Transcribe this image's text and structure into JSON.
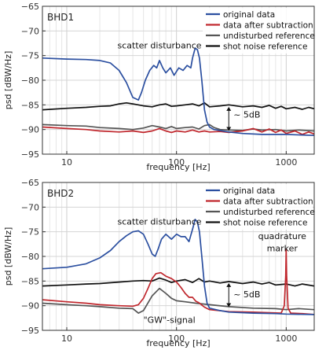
{
  "chart_data": [
    {
      "type": "line",
      "title": "BHD1",
      "xlabel": "frequency [Hz]",
      "ylabel": "psd [dBW/Hz]",
      "xscale": "log",
      "xlim": [
        6,
        1800
      ],
      "ylim": [
        -95,
        -65
      ],
      "xticks": [
        10,
        100,
        1000
      ],
      "xtick_labels": [
        "10",
        "100",
        "1000"
      ],
      "yticks": [
        -95,
        -90,
        -85,
        -80,
        -75,
        -70,
        -65
      ],
      "ytick_labels": [
        "−95",
        "−90",
        "−85",
        "−80",
        "−75",
        "−70",
        "−65"
      ],
      "grid": true,
      "legend_position": "top-right",
      "series": [
        {
          "name": "original data",
          "color": "#2b4fa0",
          "points": [
            [
              6,
              -75.5
            ],
            [
              10,
              -75.7
            ],
            [
              15,
              -75.8
            ],
            [
              20,
              -76
            ],
            [
              25,
              -76.5
            ],
            [
              30,
              -78
            ],
            [
              35,
              -80.5
            ],
            [
              40,
              -83.5
            ],
            [
              45,
              -84
            ],
            [
              48,
              -82.5
            ],
            [
              52,
              -80
            ],
            [
              57,
              -78
            ],
            [
              62,
              -77
            ],
            [
              66,
              -77.5
            ],
            [
              70,
              -76
            ],
            [
              75,
              -77.5
            ],
            [
              80,
              -78.5
            ],
            [
              88,
              -77.5
            ],
            [
              95,
              -79
            ],
            [
              105,
              -77.5
            ],
            [
              115,
              -78
            ],
            [
              125,
              -77
            ],
            [
              135,
              -77.5
            ],
            [
              140,
              -75.5
            ],
            [
              148,
              -73.5
            ],
            [
              155,
              -73.8
            ],
            [
              162,
              -75.5
            ],
            [
              170,
              -80
            ],
            [
              180,
              -86
            ],
            [
              190,
              -88.5
            ],
            [
              200,
              -89.5
            ],
            [
              220,
              -90
            ],
            [
              300,
              -90.5
            ],
            [
              400,
              -90.8
            ],
            [
              600,
              -91
            ],
            [
              1000,
              -91
            ],
            [
              1800,
              -91.2
            ]
          ]
        },
        {
          "name": "data after subtraction",
          "color": "#c0272d",
          "points": [
            [
              6,
              -89.5
            ],
            [
              10,
              -89.8
            ],
            [
              15,
              -90
            ],
            [
              20,
              -90.3
            ],
            [
              30,
              -90.5
            ],
            [
              40,
              -90.3
            ],
            [
              50,
              -90.6
            ],
            [
              60,
              -90.3
            ],
            [
              70,
              -89.8
            ],
            [
              80,
              -90.3
            ],
            [
              90,
              -90.6
            ],
            [
              100,
              -90.3
            ],
            [
              120,
              -90.5
            ],
            [
              140,
              -90.1
            ],
            [
              160,
              -90.5
            ],
            [
              180,
              -90.3
            ],
            [
              200,
              -90.5
            ],
            [
              250,
              -90.4
            ],
            [
              300,
              -90.6
            ],
            [
              400,
              -90.3
            ],
            [
              500,
              -89.8
            ],
            [
              600,
              -90.5
            ],
            [
              700,
              -89.9
            ],
            [
              800,
              -90.6
            ],
            [
              900,
              -90.1
            ],
            [
              1000,
              -90.8
            ],
            [
              1200,
              -90.3
            ],
            [
              1400,
              -91
            ],
            [
              1600,
              -90.5
            ],
            [
              1800,
              -90.9
            ]
          ]
        },
        {
          "name": "undisturbed reference",
          "color": "#555555",
          "points": [
            [
              6,
              -89
            ],
            [
              10,
              -89.2
            ],
            [
              15,
              -89.3
            ],
            [
              20,
              -89.6
            ],
            [
              30,
              -89.8
            ],
            [
              40,
              -90
            ],
            [
              50,
              -89.7
            ],
            [
              60,
              -89.2
            ],
            [
              70,
              -89.5
            ],
            [
              80,
              -89.8
            ],
            [
              90,
              -89.4
            ],
            [
              100,
              -89.8
            ],
            [
              120,
              -89.6
            ],
            [
              140,
              -89.5
            ],
            [
              160,
              -89.9
            ],
            [
              180,
              -89.2
            ],
            [
              200,
              -89
            ],
            [
              220,
              -89.6
            ],
            [
              250,
              -90
            ],
            [
              300,
              -90.1
            ],
            [
              400,
              -90.2
            ],
            [
              500,
              -89.9
            ],
            [
              600,
              -90.1
            ],
            [
              800,
              -90
            ],
            [
              1000,
              -90.3
            ],
            [
              1300,
              -90.1
            ],
            [
              1800,
              -90.3
            ]
          ]
        },
        {
          "name": "shot noise reference",
          "color": "#111111",
          "points": [
            [
              6,
              -86
            ],
            [
              10,
              -85.7
            ],
            [
              15,
              -85.5
            ],
            [
              20,
              -85.3
            ],
            [
              25,
              -85.2
            ],
            [
              30,
              -84.8
            ],
            [
              35,
              -84.6
            ],
            [
              40,
              -84.8
            ],
            [
              50,
              -85.2
            ],
            [
              60,
              -85.4
            ],
            [
              70,
              -85
            ],
            [
              80,
              -84.8
            ],
            [
              90,
              -85.3
            ],
            [
              100,
              -85.2
            ],
            [
              120,
              -85
            ],
            [
              140,
              -84.8
            ],
            [
              160,
              -85.2
            ],
            [
              180,
              -84.6
            ],
            [
              200,
              -85.4
            ],
            [
              250,
              -85.2
            ],
            [
              300,
              -85
            ],
            [
              400,
              -85.4
            ],
            [
              500,
              -85.2
            ],
            [
              600,
              -85.5
            ],
            [
              700,
              -85.1
            ],
            [
              800,
              -85.7
            ],
            [
              900,
              -85.3
            ],
            [
              1000,
              -85.8
            ],
            [
              1200,
              -85.5
            ],
            [
              1400,
              -85.9
            ],
            [
              1600,
              -85.5
            ],
            [
              1800,
              -85.8
            ]
          ]
        }
      ],
      "annotations": [
        {
          "text": "scatter disturbance",
          "x": 70,
          "y": -73.5
        },
        {
          "text": "~ 5dB",
          "x": 320,
          "y": -87.6
        }
      ]
    },
    {
      "type": "line",
      "title": "BHD2",
      "xlabel": "frequency [Hz]",
      "ylabel": "psd [dBW/Hz]",
      "xscale": "log",
      "xlim": [
        6,
        1800
      ],
      "ylim": [
        -95,
        -65
      ],
      "xticks": [
        10,
        100,
        1000
      ],
      "xtick_labels": [
        "10",
        "100",
        "1000"
      ],
      "yticks": [
        -95,
        -90,
        -85,
        -80,
        -75,
        -70,
        -65
      ],
      "ytick_labels": [
        "−95",
        "−90",
        "−85",
        "−80",
        "−75",
        "−70",
        "−65"
      ],
      "grid": true,
      "legend_position": "top-right",
      "series": [
        {
          "name": "original data",
          "color": "#2b4fa0",
          "points": [
            [
              6,
              -82.5
            ],
            [
              10,
              -82.2
            ],
            [
              15,
              -81.5
            ],
            [
              20,
              -80.3
            ],
            [
              25,
              -78.8
            ],
            [
              30,
              -77
            ],
            [
              35,
              -75.8
            ],
            [
              40,
              -75
            ],
            [
              45,
              -74.8
            ],
            [
              50,
              -75.5
            ],
            [
              55,
              -77.5
            ],
            [
              60,
              -79.5
            ],
            [
              64,
              -80
            ],
            [
              68,
              -78.5
            ],
            [
              73,
              -76.5
            ],
            [
              80,
              -75.5
            ],
            [
              90,
              -76.5
            ],
            [
              100,
              -75.5
            ],
            [
              110,
              -76
            ],
            [
              120,
              -76
            ],
            [
              130,
              -77
            ],
            [
              140,
              -74.5
            ],
            [
              148,
              -72.5
            ],
            [
              155,
              -73
            ],
            [
              162,
              -75
            ],
            [
              170,
              -80
            ],
            [
              180,
              -86
            ],
            [
              190,
              -89.5
            ],
            [
              200,
              -90.5
            ],
            [
              250,
              -91
            ],
            [
              300,
              -91.3
            ],
            [
              500,
              -91.5
            ],
            [
              800,
              -91.6
            ],
            [
              1000,
              -91.7
            ],
            [
              1800,
              -91.8
            ]
          ]
        },
        {
          "name": "data after subtraction",
          "color": "#c0272d",
          "points": [
            [
              6,
              -88.8
            ],
            [
              10,
              -89.2
            ],
            [
              15,
              -89.5
            ],
            [
              20,
              -89.8
            ],
            [
              30,
              -90
            ],
            [
              40,
              -90.1
            ],
            [
              45,
              -89.8
            ],
            [
              50,
              -88.5
            ],
            [
              55,
              -86.5
            ],
            [
              60,
              -84.5
            ],
            [
              65,
              -83.5
            ],
            [
              72,
              -83.3
            ],
            [
              80,
              -84
            ],
            [
              90,
              -84.5
            ],
            [
              100,
              -85.2
            ],
            [
              110,
              -86.3
            ],
            [
              120,
              -87.5
            ],
            [
              130,
              -88.3
            ],
            [
              140,
              -88.3
            ],
            [
              150,
              -89.1
            ],
            [
              160,
              -89.4
            ],
            [
              180,
              -90.3
            ],
            [
              200,
              -90.8
            ],
            [
              300,
              -91.2
            ],
            [
              500,
              -91.3
            ],
            [
              900,
              -91.5
            ],
            [
              960,
              -90
            ],
            [
              990,
              -84
            ],
            [
              1000,
              -78.5
            ],
            [
              1010,
              -84
            ],
            [
              1040,
              -90.5
            ],
            [
              1100,
              -91.5
            ],
            [
              1400,
              -91.6
            ],
            [
              1800,
              -91.8
            ]
          ]
        },
        {
          "name": "undisturbed reference",
          "color": "#555555",
          "points": [
            [
              6,
              -89.5
            ],
            [
              10,
              -89.8
            ],
            [
              15,
              -90
            ],
            [
              20,
              -90.2
            ],
            [
              30,
              -90.5
            ],
            [
              40,
              -90.6
            ],
            [
              45,
              -91.5
            ],
            [
              50,
              -91
            ],
            [
              60,
              -88
            ],
            [
              70,
              -86.5
            ],
            [
              80,
              -87.5
            ],
            [
              90,
              -88.5
            ],
            [
              100,
              -89
            ],
            [
              120,
              -89.2
            ],
            [
              150,
              -89.5
            ],
            [
              200,
              -89.8
            ],
            [
              300,
              -90.2
            ],
            [
              500,
              -90.5
            ],
            [
              800,
              -90.6
            ],
            [
              1000,
              -90.8
            ],
            [
              1300,
              -90.6
            ],
            [
              1800,
              -90.8
            ]
          ]
        },
        {
          "name": "shot noise reference",
          "color": "#111111",
          "points": [
            [
              6,
              -86
            ],
            [
              10,
              -85.8
            ],
            [
              15,
              -85.6
            ],
            [
              20,
              -85.5
            ],
            [
              30,
              -85.2
            ],
            [
              40,
              -85
            ],
            [
              50,
              -84.9
            ],
            [
              60,
              -85
            ],
            [
              70,
              -84.4
            ],
            [
              80,
              -84.8
            ],
            [
              90,
              -85.3
            ],
            [
              100,
              -85
            ],
            [
              120,
              -84.7
            ],
            [
              140,
              -85.3
            ],
            [
              160,
              -84.5
            ],
            [
              180,
              -85.2
            ],
            [
              200,
              -85
            ],
            [
              250,
              -85.4
            ],
            [
              300,
              -85.1
            ],
            [
              400,
              -85.5
            ],
            [
              500,
              -85.2
            ],
            [
              600,
              -85.6
            ],
            [
              700,
              -85.3
            ],
            [
              800,
              -85.8
            ],
            [
              1000,
              -85.6
            ],
            [
              1200,
              -86
            ],
            [
              1400,
              -85.6
            ],
            [
              1800,
              -86
            ]
          ]
        }
      ],
      "annotations": [
        {
          "text": "scatter disturbance",
          "x": 70,
          "y": -73.5
        },
        {
          "text": "quadrature",
          "x": 920,
          "y": -76.5
        },
        {
          "text": "marker",
          "x": 920,
          "y": -79
        },
        {
          "text": "~ 5dB",
          "x": 320,
          "y": -88.3
        },
        {
          "text": "\"GW\"-signal",
          "x": 50,
          "y": -93.5
        }
      ]
    }
  ]
}
